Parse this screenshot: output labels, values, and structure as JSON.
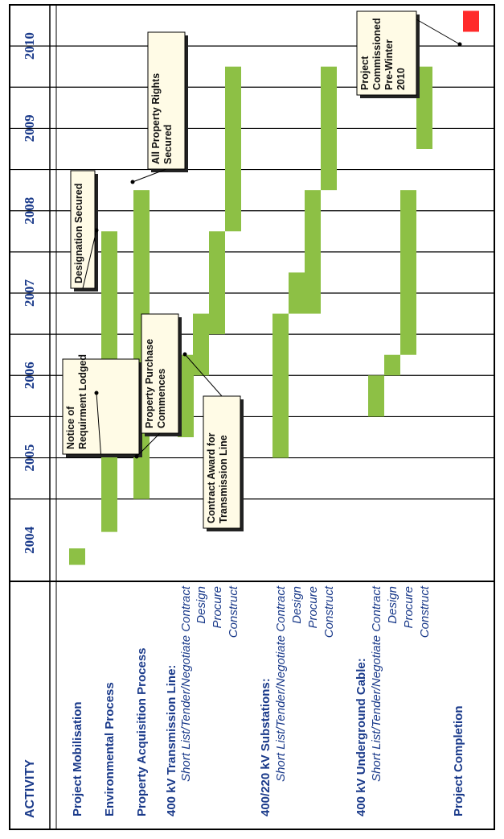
{
  "chart_data": {
    "type": "gantt",
    "header": "ACTIVITY",
    "years": [
      "2004",
      "2005",
      "2006",
      "2007",
      "2008",
      "2009",
      "2010"
    ],
    "activities": [
      {
        "label": "Project Mobilisation",
        "kind": "main",
        "bars": [
          [
            2003.7,
            2003.9
          ]
        ]
      },
      {
        "label": "Environmental Process",
        "kind": "main",
        "bars": [
          [
            2004.1,
            2007.75
          ]
        ]
      },
      {
        "label": "Property Acquisition Process",
        "kind": "main",
        "bars": [
          [
            2004.5,
            2008.25
          ]
        ]
      },
      {
        "label": "400 kV Transmission Line:",
        "kind": "main",
        "bars": []
      },
      {
        "label": "Short List/Tender/Negotiate Contract",
        "kind": "sub",
        "bars": [
          [
            2005.25,
            2006.25
          ]
        ]
      },
      {
        "label": "Design",
        "kind": "sub",
        "bars": [
          [
            2006.0,
            2006.75
          ]
        ]
      },
      {
        "label": "Procure",
        "kind": "sub",
        "bars": [
          [
            2006.5,
            2007.75
          ]
        ]
      },
      {
        "label": "Construct",
        "kind": "sub",
        "bars": [
          [
            2007.75,
            2009.75
          ]
        ]
      },
      {
        "label": "400/220 kV Substations:",
        "kind": "main",
        "bars": []
      },
      {
        "label": "Short List/Tender/Negotiate Contract",
        "kind": "sub",
        "bars": [
          [
            2005.0,
            2006.75
          ]
        ]
      },
      {
        "label": "Design",
        "kind": "sub",
        "bars": [
          [
            2006.75,
            2007.25
          ]
        ]
      },
      {
        "label": "Procure",
        "kind": "sub",
        "bars": [
          [
            2006.75,
            2008.25
          ]
        ]
      },
      {
        "label": "Construct",
        "kind": "sub",
        "bars": [
          [
            2008.25,
            2009.75
          ]
        ]
      },
      {
        "label": "400 kV Underground Cable:",
        "kind": "main",
        "bars": []
      },
      {
        "label": "Short List/Tender/Negotiate Contract",
        "kind": "sub",
        "bars": [
          [
            2005.5,
            2006.0
          ]
        ]
      },
      {
        "label": "Design",
        "kind": "sub",
        "bars": [
          [
            2006.0,
            2006.25
          ]
        ]
      },
      {
        "label": "Procure",
        "kind": "sub",
        "bars": [
          [
            2006.25,
            2008.25
          ]
        ]
      },
      {
        "label": "Construct",
        "kind": "sub",
        "bars": [
          [
            2008.75,
            2009.75
          ]
        ]
      },
      {
        "label": "Project Completion",
        "kind": "main",
        "bars": [],
        "milestone": 2010.3
      }
    ],
    "annotations": [
      {
        "lines": [
          "Notice of",
          "Requirment Lodged"
        ],
        "target_year": 2006.4,
        "target_row": 1
      },
      {
        "lines": [
          "Designation Secured"
        ],
        "target_year": 2007.75,
        "target_row": 1
      },
      {
        "lines": [
          "All Property Rights",
          "Secured"
        ],
        "target_year": 2008.25,
        "target_row": 2
      },
      {
        "lines": [
          "Property Purchase",
          "Commences"
        ],
        "target_year": 2004.5,
        "target_row": 2
      },
      {
        "lines": [
          "Contract Award for",
          "Transmission Line"
        ],
        "target_year": 2006.25,
        "target_row": 4
      },
      {
        "lines": [
          "Project",
          "Commissioned",
          "Pre-Winter",
          "2010"
        ],
        "target_year": 2010.3,
        "target_row": 18
      }
    ],
    "colors": {
      "bar": "#8dc045",
      "milestone": "#ff2a2a",
      "text": "#1a3a8a",
      "grid": "#000000"
    }
  }
}
